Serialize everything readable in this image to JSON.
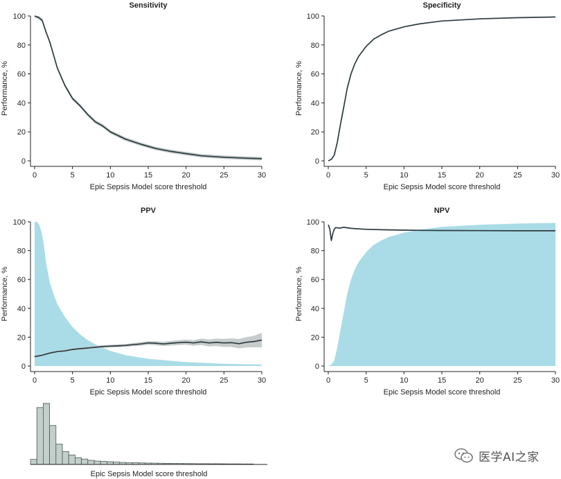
{
  "xlabel": "Epic Sepsis Model score threshold",
  "ylabel": "Performance, %",
  "histogram_xlabel": "Epic Sepsis Model score threshold",
  "watermark": "医学AI之家",
  "colors": {
    "line": "#2b3a3f",
    "band": "#c6cccc",
    "fill": "#a9dce6",
    "hist_fill": "#c3cfcb",
    "hist_stroke": "#4a5556"
  },
  "chart_data": [
    {
      "type": "line",
      "title": "Sensitivity",
      "xlim": [
        0,
        30
      ],
      "ylim": [
        0,
        100
      ],
      "xticks": [
        0,
        5,
        10,
        15,
        20,
        25,
        30
      ],
      "yticks": [
        0,
        20,
        40,
        60,
        80,
        100
      ],
      "series": [
        {
          "x": [
            0,
            0.5,
            1,
            1.5,
            2,
            3,
            4,
            5,
            6,
            7,
            8,
            9,
            10,
            12,
            14,
            16,
            18,
            20,
            22,
            25,
            28,
            30
          ],
          "y": [
            100,
            99,
            97,
            89,
            82,
            64,
            52,
            43,
            38,
            32,
            27,
            24,
            20,
            15,
            11.5,
            8.5,
            6.5,
            5,
            3.5,
            2.5,
            1.8,
            1.5
          ],
          "band": 1.2
        }
      ]
    },
    {
      "type": "line",
      "title": "Specificity",
      "xlim": [
        0,
        30
      ],
      "ylim": [
        0,
        100
      ],
      "xticks": [
        0,
        5,
        10,
        15,
        20,
        25,
        30
      ],
      "yticks": [
        0,
        20,
        40,
        60,
        80,
        100
      ],
      "series": [
        {
          "x": [
            0,
            0.4,
            0.8,
            1.2,
            1.6,
            2,
            2.5,
            3,
            3.5,
            4,
            5,
            6,
            7,
            8,
            10,
            12,
            15,
            20,
            25,
            30
          ],
          "y": [
            0,
            1,
            4,
            13,
            25,
            36,
            50,
            60,
            67,
            72,
            79,
            84,
            87,
            89.5,
            92.5,
            94.5,
            96.5,
            98,
            98.8,
            99.3
          ]
        }
      ]
    },
    {
      "type": "line",
      "title": "PPV",
      "xlim": [
        0,
        30
      ],
      "ylim": [
        0,
        100
      ],
      "xticks": [
        0,
        5,
        10,
        15,
        20,
        25,
        30
      ],
      "yticks": [
        0,
        20,
        40,
        60,
        80,
        100
      ],
      "area": {
        "x": [
          0,
          0.3,
          0.6,
          0.9,
          1.2,
          1.5,
          2,
          2.5,
          3,
          4,
          5,
          6,
          7,
          8,
          10,
          12,
          15,
          20,
          25,
          30
        ],
        "y": [
          100,
          100,
          98,
          93,
          85,
          72,
          58,
          50,
          43,
          34,
          27,
          22,
          18,
          15,
          10.5,
          7.5,
          5,
          2.7,
          1.6,
          1
        ]
      },
      "series": [
        {
          "x": [
            0,
            1,
            2,
            3,
            4,
            5,
            6,
            7,
            8,
            9,
            10,
            11,
            12,
            13,
            14,
            15,
            16,
            17,
            18,
            19,
            20,
            21,
            22,
            23,
            24,
            25,
            26,
            27,
            28,
            29,
            30
          ],
          "y": [
            6.5,
            7.5,
            9,
            10,
            10.5,
            11.5,
            12,
            12.5,
            13,
            13.5,
            13.8,
            14,
            14.3,
            14.8,
            15.3,
            16,
            15.8,
            15.3,
            15.8,
            16.2,
            16.5,
            16,
            16.8,
            16,
            16.4,
            16,
            16.2,
            15.5,
            16.5,
            17,
            18
          ],
          "band": [
            0.5,
            0.5,
            0.6,
            0.6,
            0.6,
            0.7,
            0.7,
            0.8,
            0.8,
            0.8,
            0.9,
            1,
            1,
            1.1,
            1.2,
            1.3,
            1.4,
            1.5,
            1.6,
            1.7,
            1.8,
            2,
            2.2,
            2.4,
            2.6,
            2.8,
            3,
            3.3,
            3.6,
            4,
            5
          ]
        }
      ]
    },
    {
      "type": "line",
      "title": "NPV",
      "xlim": [
        0,
        30
      ],
      "ylim": [
        0,
        100
      ],
      "xticks": [
        0,
        5,
        10,
        15,
        20,
        25,
        30
      ],
      "yticks": [
        0,
        20,
        40,
        60,
        80,
        100
      ],
      "area": {
        "x": [
          0,
          0.4,
          0.8,
          1.2,
          1.6,
          2,
          2.5,
          3,
          3.5,
          4,
          5,
          6,
          7,
          8,
          10,
          12,
          15,
          20,
          25,
          30
        ],
        "y": [
          0,
          1,
          4,
          13,
          25,
          36,
          50,
          60,
          67,
          72,
          79,
          84,
          87,
          89.5,
          92.5,
          94.5,
          96.5,
          98,
          98.8,
          99.3
        ]
      },
      "series": [
        {
          "x": [
            0,
            0.2,
            0.4,
            0.6,
            0.8,
            1,
            1.5,
            2,
            3,
            5,
            8,
            12,
            15,
            20,
            25,
            30
          ],
          "y": [
            98,
            95,
            87,
            92,
            95,
            96,
            95.6,
            96.2,
            95.5,
            94.8,
            94.4,
            94.1,
            94,
            93.9,
            93.8,
            93.8
          ],
          "band": 0.4
        }
      ]
    },
    {
      "type": "bar",
      "xlabel": "Epic Sepsis Model score threshold",
      "values": [
        1.5,
        16.8,
        18,
        11.5,
        6,
        3.8,
        2.8,
        2,
        1.6,
        1.2,
        1,
        0.9,
        0.8,
        0.7,
        0.6,
        0.5,
        0.5,
        0.45,
        0.4,
        0.38,
        0.35,
        0.33,
        0.3,
        0.28,
        0.26,
        0.25,
        0.23,
        0.22,
        0.2,
        0.2,
        0.18,
        0.17,
        0.16,
        0.15,
        0.15
      ]
    }
  ]
}
